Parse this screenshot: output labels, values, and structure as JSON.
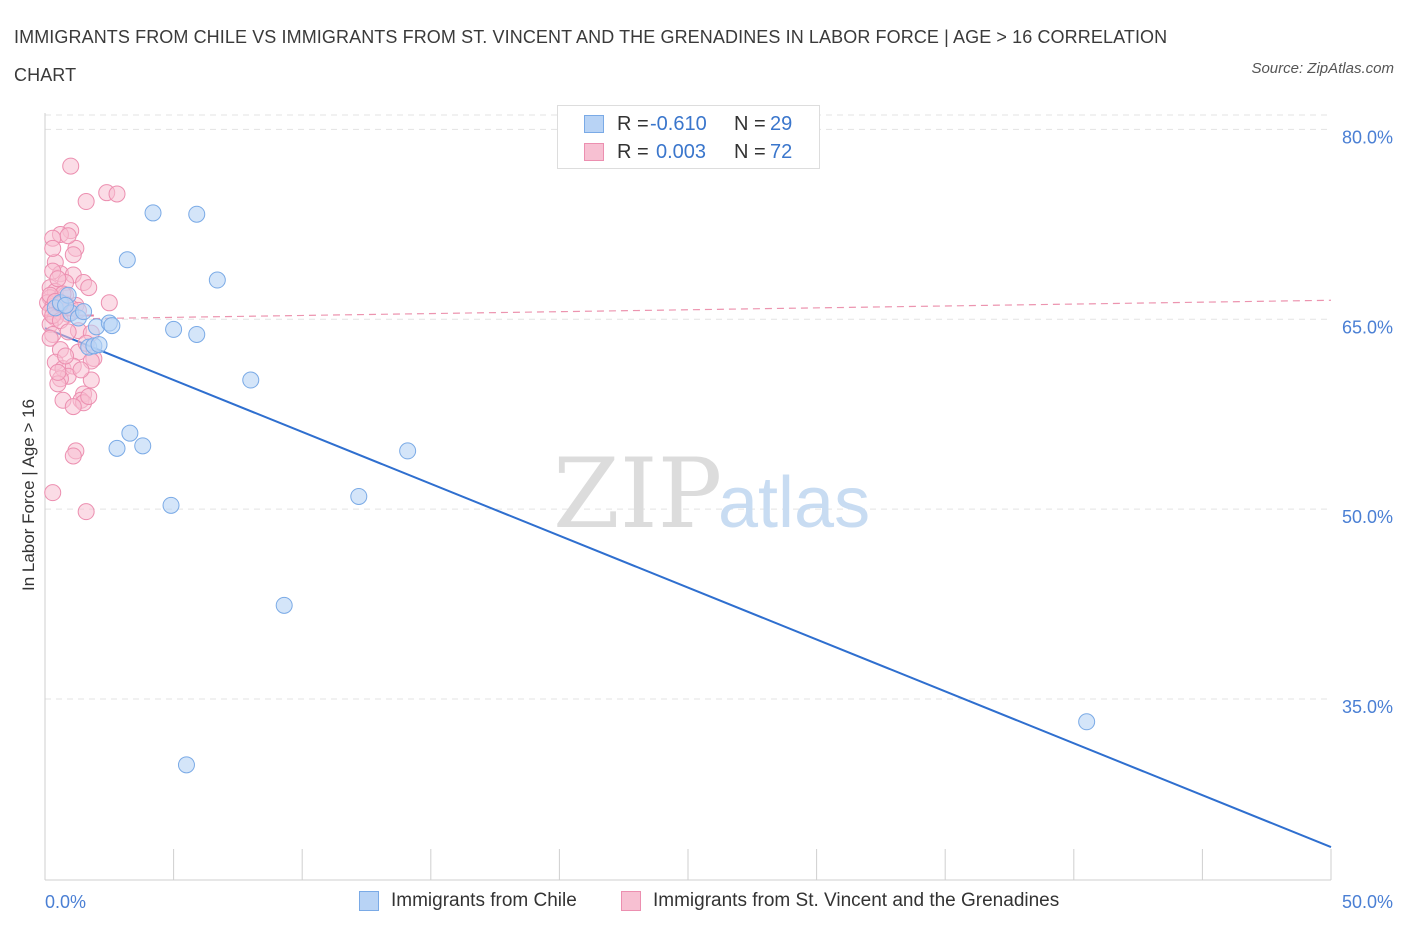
{
  "title": "IMMIGRANTS FROM CHILE VS IMMIGRANTS FROM ST. VINCENT AND THE GRENADINES IN LABOR FORCE | AGE > 16 CORRELATION CHART",
  "source": "Source: ZipAtlas.com",
  "watermark": {
    "zip": "ZIP",
    "atlas": "atlas"
  },
  "colors": {
    "chile_fill": "#b8d3f5",
    "chile_stroke": "#7aaae6",
    "chile_line": "#2f6fcf",
    "svg_fill": "#f7c0d2",
    "svg_stroke": "#ec8fb0",
    "svg_line": "#e87a9c",
    "grid": "#e3e3e3",
    "tick_text": "#4a7fd4"
  },
  "legend": {
    "series1": {
      "r_label": "R =",
      "r_value": "-0.610",
      "n_label": "N =",
      "n_value": "29"
    },
    "series2": {
      "r_label": "R =",
      "r_value": "0.003",
      "n_label": "N =",
      "n_value": "72"
    }
  },
  "chart_data": {
    "type": "scatter",
    "title": "IMMIGRANTS FROM CHILE VS IMMIGRANTS FROM ST. VINCENT AND THE GRENADINES IN LABOR FORCE | AGE > 16 CORRELATION CHART",
    "xlabel": "",
    "ylabel": "In Labor Force | Age > 16",
    "xlim": [
      0,
      50
    ],
    "ylim": [
      20.7,
      80.9
    ],
    "x_tick_labels": [
      "0.0%",
      "50.0%"
    ],
    "y_ticks": [
      35,
      50,
      65,
      80
    ],
    "y_tick_labels": [
      "35.0%",
      "50.0%",
      "65.0%",
      "80.0%"
    ],
    "grid": true,
    "legend_position": "bottom",
    "series": [
      {
        "name": "Immigrants from Chile",
        "r": -0.61,
        "n": 29,
        "trend": {
          "x": [
            0,
            50
          ],
          "y": [
            64.3,
            23.3
          ]
        },
        "points": [
          [
            0.4,
            65.9
          ],
          [
            0.6,
            66.3
          ],
          [
            0.9,
            66.9
          ],
          [
            1.0,
            65.5
          ],
          [
            1.3,
            65.1
          ],
          [
            1.7,
            62.8
          ],
          [
            1.9,
            62.9
          ],
          [
            2.0,
            64.4
          ],
          [
            2.5,
            64.7
          ],
          [
            2.6,
            64.5
          ],
          [
            2.8,
            54.8
          ],
          [
            3.2,
            69.7
          ],
          [
            3.3,
            56.0
          ],
          [
            3.8,
            55.0
          ],
          [
            4.2,
            73.4
          ],
          [
            4.9,
            50.3
          ],
          [
            5.0,
            64.2
          ],
          [
            5.9,
            73.3
          ],
          [
            5.9,
            63.8
          ],
          [
            6.7,
            68.1
          ],
          [
            8.0,
            60.2
          ],
          [
            9.3,
            42.4
          ],
          [
            5.5,
            29.8
          ],
          [
            12.2,
            51.0
          ],
          [
            14.1,
            54.6
          ],
          [
            40.5,
            33.2
          ],
          [
            1.5,
            65.6
          ],
          [
            2.1,
            63.0
          ],
          [
            0.8,
            66.1
          ]
        ]
      },
      {
        "name": "Immigrants from St. Vincent and the Grenadines",
        "r": 0.003,
        "n": 72,
        "trend": {
          "x": [
            0,
            1.9
          ],
          "y": [
            65.3,
            65.3
          ],
          "extended": {
            "x": [
              0,
              50
            ],
            "y": [
              65.0,
              66.5
            ]
          }
        },
        "points": [
          [
            1.0,
            77.1
          ],
          [
            1.6,
            74.3
          ],
          [
            2.4,
            75.0
          ],
          [
            2.8,
            74.9
          ],
          [
            1.0,
            72.0
          ],
          [
            0.6,
            71.7
          ],
          [
            0.3,
            71.4
          ],
          [
            1.2,
            70.6
          ],
          [
            0.9,
            71.6
          ],
          [
            1.1,
            70.1
          ],
          [
            0.4,
            69.5
          ],
          [
            0.6,
            68.6
          ],
          [
            0.3,
            68.8
          ],
          [
            1.1,
            68.5
          ],
          [
            0.8,
            67.9
          ],
          [
            1.5,
            67.9
          ],
          [
            0.2,
            67.5
          ],
          [
            1.7,
            67.5
          ],
          [
            0.4,
            67.2
          ],
          [
            0.8,
            66.9
          ],
          [
            0.2,
            66.7
          ],
          [
            0.5,
            66.5
          ],
          [
            0.1,
            66.3
          ],
          [
            0.8,
            66.2
          ],
          [
            1.2,
            66.1
          ],
          [
            2.5,
            66.3
          ],
          [
            0.3,
            66.0
          ],
          [
            0.6,
            65.8
          ],
          [
            0.2,
            65.6
          ],
          [
            0.9,
            65.4
          ],
          [
            0.4,
            65.1
          ],
          [
            0.2,
            64.6
          ],
          [
            1.3,
            64.1
          ],
          [
            0.3,
            63.8
          ],
          [
            0.2,
            63.5
          ],
          [
            1.8,
            63.9
          ],
          [
            0.6,
            62.6
          ],
          [
            1.3,
            62.4
          ],
          [
            1.9,
            61.9
          ],
          [
            0.4,
            61.6
          ],
          [
            1.8,
            61.7
          ],
          [
            0.7,
            61.1
          ],
          [
            1.1,
            61.3
          ],
          [
            0.9,
            60.5
          ],
          [
            0.6,
            60.3
          ],
          [
            0.5,
            59.9
          ],
          [
            1.8,
            60.2
          ],
          [
            1.5,
            59.1
          ],
          [
            1.4,
            58.6
          ],
          [
            0.7,
            58.6
          ],
          [
            1.5,
            58.4
          ],
          [
            1.1,
            58.1
          ],
          [
            1.2,
            54.6
          ],
          [
            1.1,
            54.2
          ],
          [
            0.3,
            51.3
          ],
          [
            1.6,
            49.8
          ],
          [
            0.5,
            68.2
          ],
          [
            0.7,
            67.0
          ],
          [
            0.2,
            66.9
          ],
          [
            0.4,
            66.4
          ],
          [
            1.0,
            65.9
          ],
          [
            0.3,
            65.3
          ],
          [
            0.6,
            64.9
          ],
          [
            0.9,
            64.0
          ],
          [
            1.6,
            63.1
          ],
          [
            0.8,
            62.1
          ],
          [
            1.4,
            61.0
          ],
          [
            0.5,
            60.8
          ],
          [
            1.7,
            58.9
          ],
          [
            0.3,
            70.6
          ],
          [
            0.6,
            66.2
          ],
          [
            1.3,
            65.7
          ]
        ]
      }
    ]
  },
  "bottom_legend": [
    "Immigrants from Chile",
    "Immigrants from St. Vincent and the Grenadines"
  ]
}
